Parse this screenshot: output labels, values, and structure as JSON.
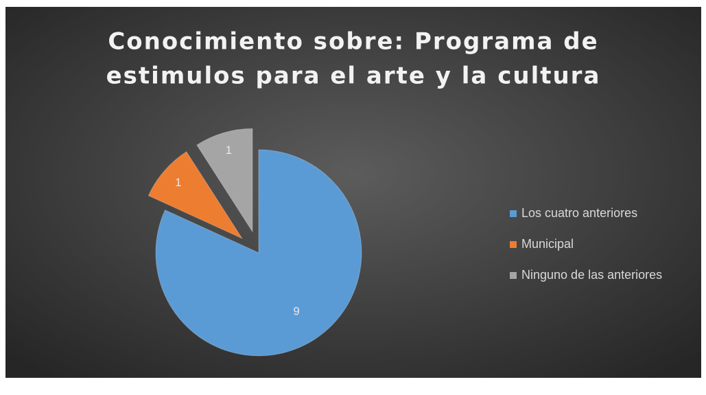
{
  "chart_data": {
    "type": "pie",
    "title": [
      "Conocimiento sobre: Programa de",
      "estimulos para el arte y la cultura"
    ],
    "categories": [
      "Los cuatro anteriores",
      "Municipal",
      "Ninguno de las anteriores"
    ],
    "values": [
      9,
      1,
      1
    ],
    "colors": [
      "#5b9bd5",
      "#ed7d31",
      "#a5a5a5"
    ],
    "legend": "right"
  }
}
